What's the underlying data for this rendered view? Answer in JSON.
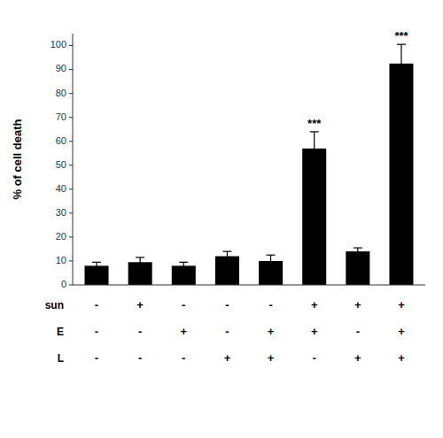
{
  "chart_data": {
    "type": "bar",
    "ylabel": "% of cell death",
    "values": [
      8.0,
      9.5,
      8.0,
      12.0,
      10.0,
      57.0,
      14.0,
      92.5
    ],
    "errors": [
      1.5,
      2.0,
      1.5,
      2.0,
      2.5,
      7.0,
      1.5,
      8.0
    ],
    "significance": [
      null,
      null,
      null,
      null,
      null,
      "***",
      null,
      "***"
    ],
    "color": "#000000",
    "ylim": [
      0,
      105
    ],
    "yticks": [
      0,
      10,
      20,
      30,
      40,
      50,
      60,
      70,
      80,
      90,
      100
    ],
    "grid": false,
    "x_label_rows": [
      {
        "name": "sun",
        "labels": [
          "-",
          "+",
          "-",
          "-",
          "-",
          "+",
          "+",
          "+"
        ]
      },
      {
        "name": "E",
        "labels": [
          "-",
          "-",
          "+",
          "-",
          "+",
          "+",
          "-",
          "+"
        ]
      },
      {
        "name": "L",
        "labels": [
          "-",
          "-",
          "-",
          "+",
          "+",
          "-",
          "+",
          "+"
        ]
      }
    ]
  }
}
